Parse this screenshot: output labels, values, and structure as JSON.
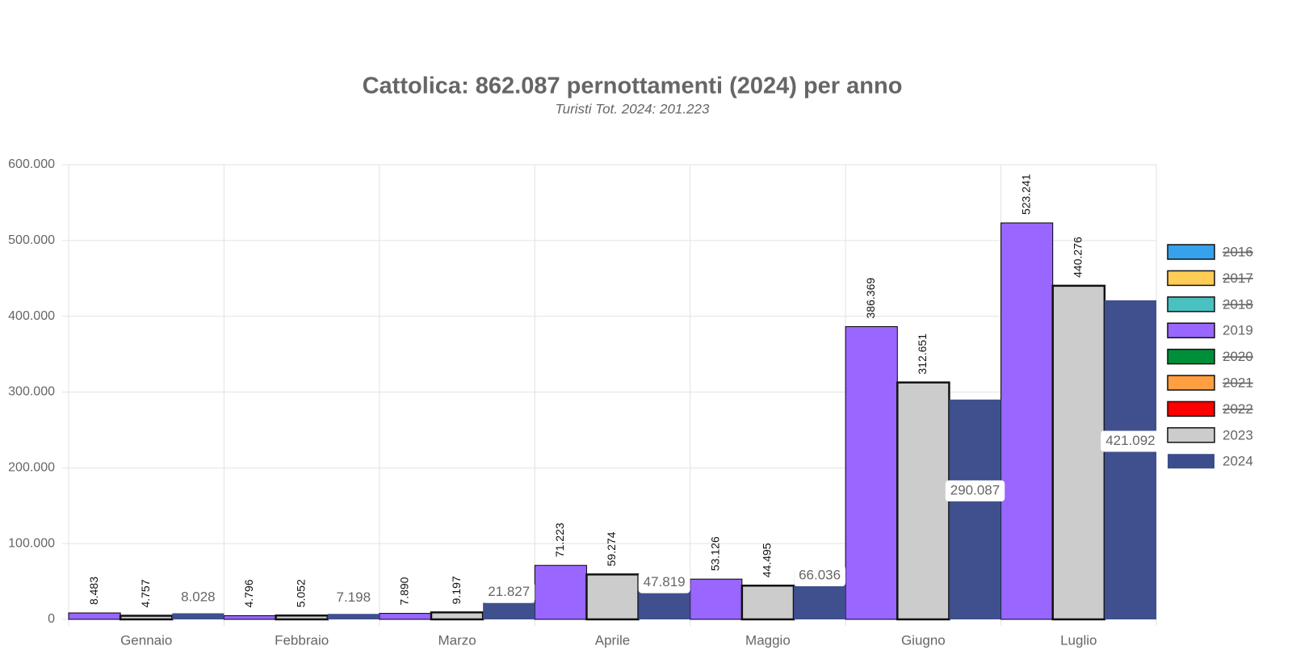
{
  "chart_data": {
    "type": "bar",
    "title": "Cattolica: 862.087 pernottamenti (2024) per anno",
    "subtitle": "Turisti Tot. 2024: 201.223",
    "categories": [
      "Gennaio",
      "Febbraio",
      "Marzo",
      "Aprile",
      "Maggio",
      "Giugno",
      "Luglio"
    ],
    "series": [
      {
        "name": "2016",
        "color": "#36a2eb",
        "hidden": true,
        "values": [
          null,
          null,
          null,
          null,
          null,
          null,
          null
        ]
      },
      {
        "name": "2017",
        "color": "#ffcd56",
        "hidden": true,
        "values": [
          null,
          null,
          null,
          null,
          null,
          null,
          null
        ]
      },
      {
        "name": "2018",
        "color": "#4bc0c0",
        "hidden": true,
        "values": [
          null,
          null,
          null,
          null,
          null,
          null,
          null
        ]
      },
      {
        "name": "2019",
        "color": "#9966ff",
        "values": [
          8483,
          4796,
          7890,
          71223,
          53126,
          386369,
          523241
        ],
        "value_labels": [
          "8.483",
          "4.796",
          "7.890",
          "71.223",
          "53.126",
          "386.369",
          "523.241"
        ]
      },
      {
        "name": "2020",
        "color": "#008f39",
        "hidden": true,
        "values": [
          null,
          null,
          null,
          null,
          null,
          null,
          null
        ]
      },
      {
        "name": "2021",
        "color": "#ff9f40",
        "hidden": true,
        "values": [
          null,
          null,
          null,
          null,
          null,
          null,
          null
        ]
      },
      {
        "name": "2022",
        "color": "#ff0000",
        "hidden": true,
        "values": [
          null,
          null,
          null,
          null,
          null,
          null,
          null
        ]
      },
      {
        "name": "2023",
        "color": "#cccccc",
        "values": [
          4757,
          5052,
          9197,
          59274,
          44495,
          312651,
          440276
        ],
        "value_labels": [
          "4.757",
          "5.052",
          "9.197",
          "59.274",
          "44.495",
          "312.651",
          "440.276"
        ]
      },
      {
        "name": "2024",
        "color": "#3c4d8c",
        "values": [
          8028,
          7198,
          21827,
          47819,
          66036,
          290087,
          421092
        ],
        "value_labels": [
          "8.028",
          "7.198",
          "21.827",
          "47.819",
          "66.036",
          "290.087",
          "421.092"
        ]
      }
    ],
    "ylim": [
      0,
      600000
    ],
    "yticks": [
      0,
      {
        "value": 100000,
        "label": "100.000"
      },
      {
        "value": 200000,
        "label": "200.000"
      },
      {
        "value": 300000,
        "label": "300.000"
      },
      {
        "value": 400000,
        "label": "400.000"
      },
      {
        "value": 500000,
        "label": "500.000"
      },
      {
        "value": 600000,
        "label": "600.000"
      }
    ],
    "grid": true,
    "legend": "right"
  }
}
